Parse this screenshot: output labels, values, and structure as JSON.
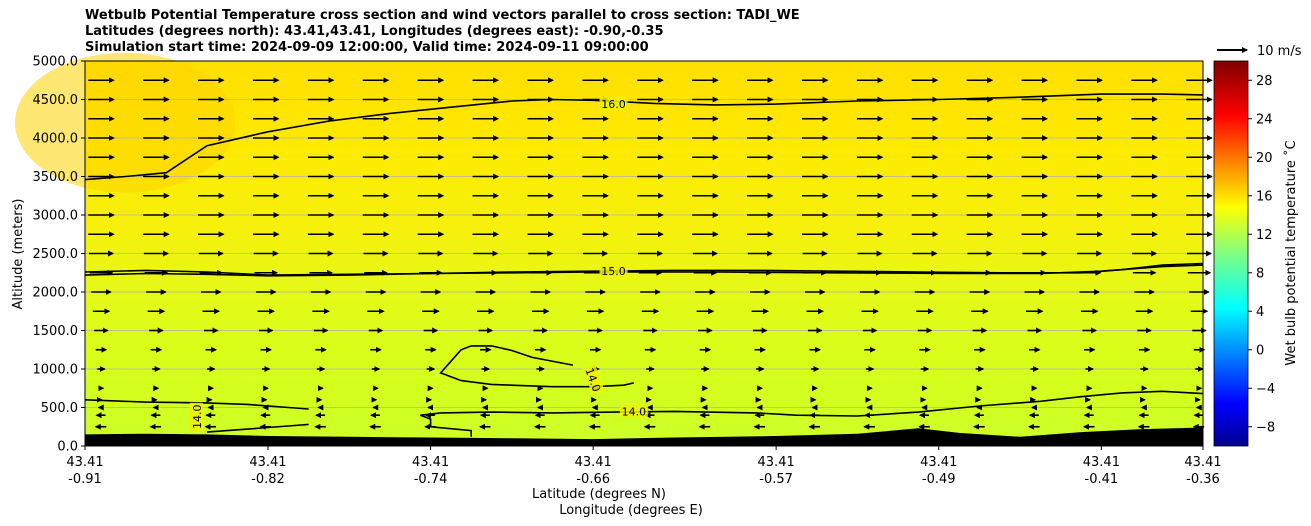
{
  "chart_data": {
    "type": "heatmap",
    "subtype": "cross-section with filled color field, contour lines and wind vectors",
    "title_lines": [
      "Wetbulb Potential Temperature cross section and wind vectors parallel to cross section: TADI_WE",
      "Latitudes (degrees north): 43.41,43.41, Longitudes (degrees east): -0.90,-0.35",
      "Simulation start time: 2024-09-09 12:00:00, Valid time: 2024-09-11 09:00:00"
    ],
    "xlabel_lines": [
      "Latitude (degrees N)",
      "Longitude (degrees E)"
    ],
    "ylabel": "Altitude (meters)",
    "x_range": [
      -0.91,
      -0.36
    ],
    "ylim": [
      0,
      5000
    ],
    "y_ticks": [
      "0.0",
      "500.0",
      "1000.0",
      "1500.0",
      "2000.0",
      "2500.0",
      "3000.0",
      "3500.0",
      "4000.0",
      "4500.0",
      "5000.0"
    ],
    "y_tick_values": [
      0,
      500,
      1000,
      1500,
      2000,
      2500,
      3000,
      3500,
      4000,
      4500,
      5000
    ],
    "x_ticks": [
      {
        "lat": "43.41",
        "lon": "-0.91",
        "value": -0.91
      },
      {
        "lat": "43.41",
        "lon": "-0.82",
        "value": -0.82
      },
      {
        "lat": "43.41",
        "lon": "-0.74",
        "value": -0.74
      },
      {
        "lat": "43.41",
        "lon": "-0.66",
        "value": -0.66
      },
      {
        "lat": "43.41",
        "lon": "-0.57",
        "value": -0.57
      },
      {
        "lat": "43.41",
        "lon": "-0.49",
        "value": -0.49
      },
      {
        "lat": "43.41",
        "lon": "-0.41",
        "value": -0.41
      },
      {
        "lat": "43.41",
        "lon": "-0.36",
        "value": -0.36
      }
    ],
    "grid": "horizontal",
    "colorbar": {
      "label": "Wet bulb potential temperature $^\\circ$C",
      "label_rendered": "Wet bulb potential temperature ˚C",
      "range": [
        -10,
        30
      ],
      "ticks": [
        "28",
        "24",
        "20",
        "16",
        "12",
        "8",
        "4",
        "0",
        "−4",
        "−8"
      ],
      "tick_values": [
        28,
        24,
        20,
        16,
        12,
        8,
        4,
        0,
        -4,
        -8
      ],
      "colormap": "jet"
    },
    "field_value_range_shown": [
      13.5,
      17.0
    ],
    "contours": [
      {
        "level": 16.0,
        "label": "16.0",
        "label_at": {
          "lon": -0.65,
          "alt": 4440
        }
      },
      {
        "level": 15.0,
        "label": "15.0",
        "label_at": {
          "lon": -0.65,
          "alt": 2270
        }
      },
      {
        "level": 14.0,
        "label": "14.0",
        "label_at": {
          "lon": -0.855,
          "alt": 380
        }
      },
      {
        "level": 14.0,
        "label": "14.0",
        "label_at": {
          "lon": -0.66,
          "alt": 860
        }
      },
      {
        "level": 14.0,
        "label": "14.0",
        "label_at": {
          "lon": -0.64,
          "alt": 450
        }
      }
    ],
    "wind_vectors": {
      "component": "parallel to cross section",
      "reference_key": "10 m/s",
      "reference_speed": 10,
      "levels_m": [
        250,
        400,
        500,
        600,
        750,
        1000,
        1250,
        1500,
        1750,
        2000,
        2250,
        2500,
        2750,
        3000,
        3250,
        3500,
        3750,
        4000,
        4250,
        4500,
        4750
      ],
      "speeds_m_s": [
        -3.5,
        -3,
        -1.5,
        0.5,
        1.5,
        2.5,
        3.5,
        4.5,
        5.5,
        6.5,
        7.5,
        8,
        8.5,
        8.5,
        8.5,
        8.5,
        8.5,
        8.5,
        8.5,
        8.5,
        8.5
      ]
    },
    "terrain": {
      "description": "terrain mask drawn in black at the bottom",
      "points": [
        {
          "lon": -0.91,
          "alt": 150
        },
        {
          "lon": -0.88,
          "alt": 160
        },
        {
          "lon": -0.85,
          "alt": 150
        },
        {
          "lon": -0.82,
          "alt": 130
        },
        {
          "lon": -0.78,
          "alt": 120
        },
        {
          "lon": -0.74,
          "alt": 110
        },
        {
          "lon": -0.7,
          "alt": 100
        },
        {
          "lon": -0.66,
          "alt": 90
        },
        {
          "lon": -0.62,
          "alt": 110
        },
        {
          "lon": -0.57,
          "alt": 130
        },
        {
          "lon": -0.53,
          "alt": 160
        },
        {
          "lon": -0.5,
          "alt": 230
        },
        {
          "lon": -0.48,
          "alt": 170
        },
        {
          "lon": -0.45,
          "alt": 120
        },
        {
          "lon": -0.42,
          "alt": 180
        },
        {
          "lon": -0.39,
          "alt": 220
        },
        {
          "lon": -0.36,
          "alt": 240
        }
      ]
    }
  }
}
